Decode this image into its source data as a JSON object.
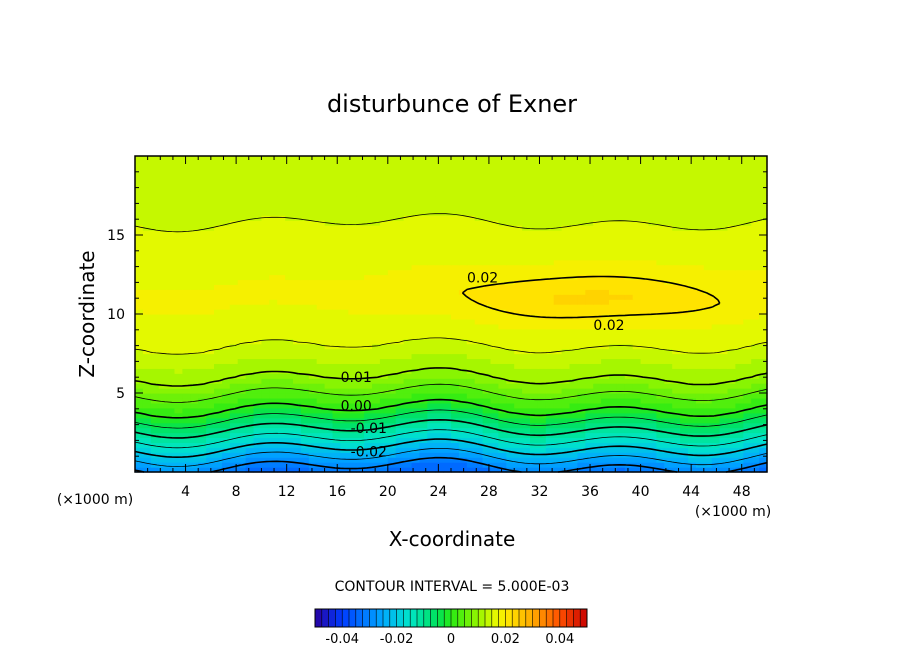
{
  "chart_data": {
    "type": "heatmap",
    "title": "disturbunce of Exner",
    "xlabel": "X-coordinate",
    "ylabel": "Z-coordinate",
    "x_unit": "(×1000 m)",
    "y_unit": "(×1000 m)",
    "xlim": [
      0,
      50
    ],
    "ylim": [
      0,
      20
    ],
    "x_ticks": [
      4,
      8,
      12,
      16,
      20,
      24,
      28,
      32,
      36,
      40,
      44,
      48
    ],
    "y_ticks": [
      5,
      10,
      15
    ],
    "contour_interval_text": "CONTOUR INTERVAL = 5.000E-03",
    "contour_interval": 0.005,
    "colorbar": {
      "range": [
        -0.05,
        0.05
      ],
      "ticks": [
        -0.04,
        -0.02,
        0,
        0.02,
        0.04
      ],
      "tick_labels": [
        "-0.04",
        "-0.02",
        "0",
        "0.02",
        "0.04"
      ]
    },
    "profile": [
      {
        "z": 0,
        "value": -0.033
      },
      {
        "z": 2,
        "value": -0.016
      },
      {
        "z": 4,
        "value": 0.0
      },
      {
        "z": 6,
        "value": 0.01
      },
      {
        "z": 8,
        "value": 0.015
      },
      {
        "z": 11,
        "value": 0.018
      },
      {
        "z": 14,
        "value": 0.0165
      },
      {
        "z": 17,
        "value": 0.014
      },
      {
        "z": 20,
        "value": 0.013
      }
    ],
    "bulge": {
      "x": 36,
      "z": 11,
      "x_radius": 14,
      "z_radius": 2.2,
      "value": 0.005
    },
    "contour_labels": [
      {
        "text": "0.02",
        "x": 27.5,
        "z": 12.3
      },
      {
        "text": "0.02",
        "x": 37.5,
        "z": 9.3
      },
      {
        "text": "0.01",
        "x": 17.5,
        "z": 6.0
      },
      {
        "text": "0.00",
        "x": 17.5,
        "z": 4.2
      },
      {
        "text": "-0.01",
        "x": 18.5,
        "z": 2.8
      },
      {
        "text": "-0.02",
        "x": 18.5,
        "z": 1.3
      }
    ]
  }
}
